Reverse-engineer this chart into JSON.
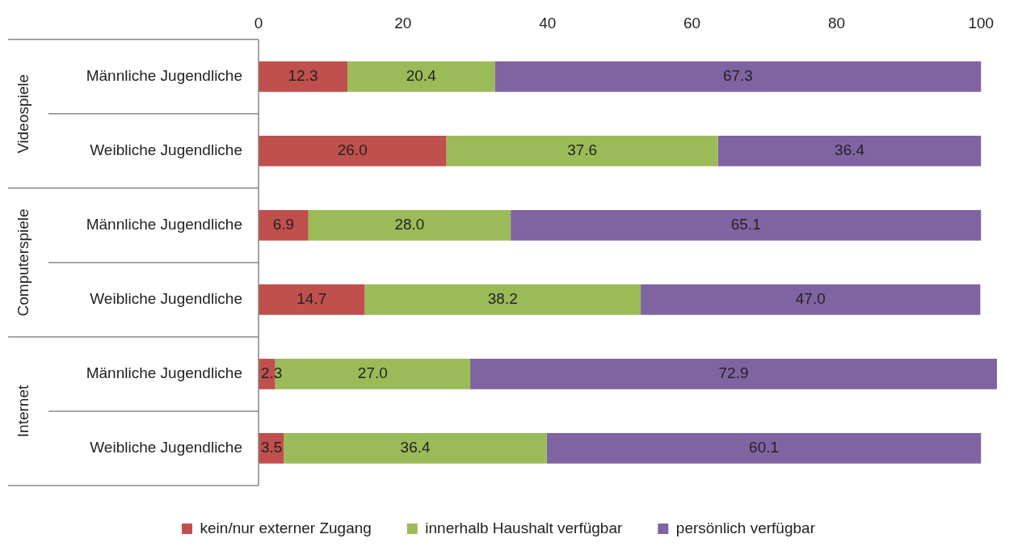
{
  "chart_data": {
    "type": "bar",
    "orientation": "horizontal",
    "stacked": true,
    "categories": [
      "Männliche Jugendliche",
      "Weibliche Jugendliche",
      "Männliche Jugendliche",
      "Weibliche Jugendliche",
      "Männliche Jugendliche",
      "Weibliche Jugendliche"
    ],
    "series": [
      {
        "name": "kein/nur externer Zugang",
        "color": "#c0504d",
        "values": [
          12.3,
          26.0,
          6.9,
          14.7,
          2.3,
          3.5
        ],
        "value_labels": [
          "12.3",
          "26.0",
          "6.9",
          "14.7",
          "2.3",
          "3.5"
        ]
      },
      {
        "name": "innerhalb Haushalt verfügbar",
        "color": "#9bbb59",
        "values": [
          20.4,
          37.6,
          28.0,
          38.2,
          27.0,
          36.4
        ],
        "value_labels": [
          "20.4",
          "37.6",
          "28.0",
          "38.2",
          "27.0",
          "36.4"
        ]
      },
      {
        "name": "persönlich verfügbar",
        "color": "#8064a2",
        "values": [
          67.3,
          36.4,
          65.1,
          47.0,
          72.9,
          60.1
        ],
        "value_labels": [
          "67.3",
          "36.4",
          "65.1",
          "47.0",
          "72.9",
          "60.1"
        ]
      }
    ],
    "annotations": [
      "Videospiele",
      "Computerspiele",
      "Internet"
    ],
    "xlim": [
      0,
      102.2
    ],
    "xticks": [
      0,
      20,
      40,
      60,
      80,
      100
    ],
    "grid": false,
    "legend": "bottom"
  }
}
